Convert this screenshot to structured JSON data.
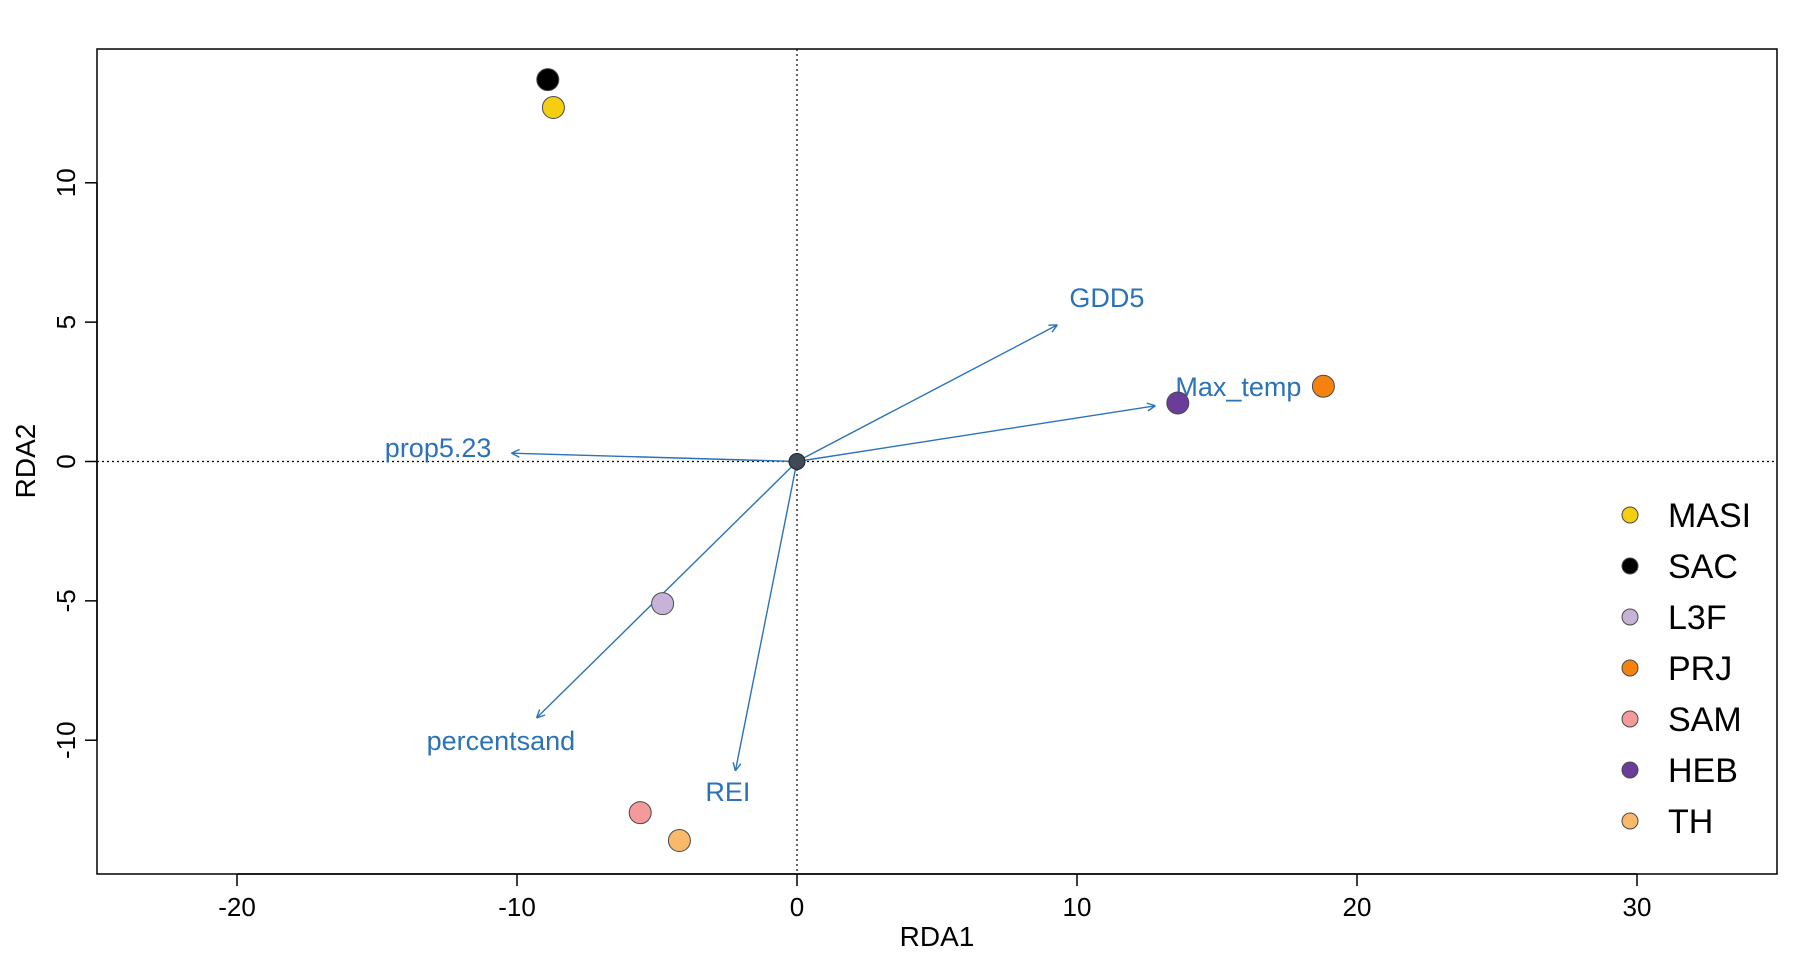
{
  "chart_data": {
    "type": "scatter",
    "title": "",
    "xlabel": "RDA1",
    "ylabel": "RDA2",
    "xlim": [
      -25,
      35
    ],
    "ylim": [
      -14.8,
      14.8
    ],
    "x_ticks": [
      -20,
      -10,
      0,
      10,
      20,
      30
    ],
    "x_tick_labels": [
      "-20",
      "-10",
      "0",
      "10",
      "20",
      "30"
    ],
    "y_ticks": [
      -10,
      -5,
      0,
      5,
      10
    ],
    "y_tick_labels": [
      "-10",
      "-5",
      "0",
      "5",
      "10"
    ],
    "reference_lines": {
      "x": 0,
      "y": 0,
      "style": "dotted"
    },
    "legend_position": "right",
    "sites": [
      {
        "name": "MASI",
        "x": -8.7,
        "y": 12.7,
        "color": "#F5CE12"
      },
      {
        "name": "SAC",
        "x": -8.9,
        "y": 13.7,
        "color": "#000000"
      },
      {
        "name": "L3F",
        "x": -4.8,
        "y": -5.1,
        "color": "#C7B3D8"
      },
      {
        "name": "PRJ",
        "x": 18.8,
        "y": 2.7,
        "color": "#F5820E"
      },
      {
        "name": "SAM",
        "x": -5.6,
        "y": -12.6,
        "color": "#F49A9A"
      },
      {
        "name": "HEB",
        "x": 13.6,
        "y": 2.1,
        "color": "#6A3D9A"
      },
      {
        "name": "TH",
        "x": -4.2,
        "y": -13.6,
        "color": "#F9B96A"
      }
    ],
    "origin_point": {
      "x": 0,
      "y": 0,
      "color": "#3E4A57"
    },
    "vector_color": "#2B72B8",
    "vectors": [
      {
        "name": "GDD5",
        "x": 9.3,
        "y": 4.9
      },
      {
        "name": "Max_temp",
        "x": 12.8,
        "y": 2.0
      },
      {
        "name": "prop5.23",
        "x": -10.2,
        "y": 0.3
      },
      {
        "name": "percentsand",
        "x": -9.3,
        "y": -9.2
      },
      {
        "name": "REI",
        "x": -2.2,
        "y": -11.1
      }
    ],
    "legend": [
      "MASI",
      "SAC",
      "L3F",
      "PRJ",
      "SAM",
      "HEB",
      "TH"
    ]
  }
}
